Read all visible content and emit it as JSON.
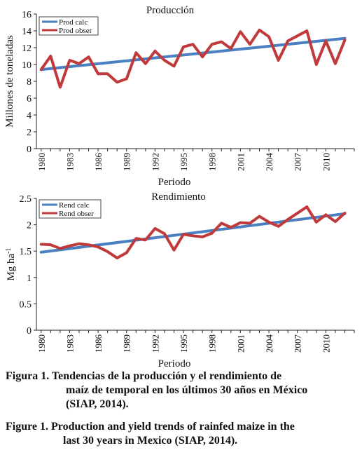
{
  "colors": {
    "calc": "#4a7fc1",
    "obser": "#c0393b"
  },
  "chart_data": [
    {
      "type": "line",
      "title": "Producción",
      "xlabel": "Periodo",
      "ylabel": "Millones de toneladas",
      "ylim": [
        0,
        16
      ],
      "yticks": [
        "0",
        "2",
        "4",
        "6",
        "8",
        "10",
        "12",
        "14",
        "16"
      ],
      "xticks": [
        "1980",
        "1983",
        "1986",
        "1989",
        "1992",
        "1995",
        "1998",
        "2001",
        "2004",
        "2007",
        "2010"
      ],
      "x": [
        1980,
        1981,
        1982,
        1983,
        1984,
        1985,
        1986,
        1987,
        1988,
        1989,
        1990,
        1991,
        1992,
        1993,
        1994,
        1995,
        1996,
        1997,
        1998,
        1999,
        2000,
        2001,
        2002,
        2003,
        2004,
        2005,
        2006,
        2007,
        2008,
        2009,
        2010,
        2011,
        2012
      ],
      "grid": false,
      "legend": "top-left",
      "series": [
        {
          "name": "Prod calc",
          "x": [
            1980,
            2012
          ],
          "values": [
            9.4,
            13.1
          ]
        },
        {
          "name": "Prod obser",
          "values": [
            9.4,
            11.0,
            7.3,
            10.5,
            10.1,
            10.9,
            8.9,
            8.9,
            7.9,
            8.3,
            11.4,
            10.1,
            11.6,
            10.5,
            9.8,
            12.1,
            12.4,
            10.9,
            12.4,
            12.7,
            11.9,
            13.9,
            12.4,
            14.1,
            13.3,
            10.5,
            12.8,
            13.4,
            14.0,
            10.0,
            12.8,
            10.1,
            12.9
          ]
        }
      ]
    },
    {
      "type": "line",
      "title": "Rendimiento",
      "xlabel": "Periodo",
      "ylabel": "Mg ha",
      "ylabel_sup": "-1",
      "ylim": [
        0,
        2.5
      ],
      "yticks": [
        "0",
        "0.5",
        "1",
        "1.5",
        "2",
        "2.5"
      ],
      "xticks": [
        "1980",
        "1983",
        "1986",
        "1989",
        "1992",
        "1995",
        "1998",
        "2001",
        "2004",
        "2007",
        "2010"
      ],
      "x": [
        1980,
        1981,
        1982,
        1983,
        1984,
        1985,
        1986,
        1987,
        1988,
        1989,
        1990,
        1991,
        1992,
        1993,
        1994,
        1995,
        1996,
        1997,
        1998,
        1999,
        2000,
        2001,
        2002,
        2003,
        2004,
        2005,
        2006,
        2007,
        2008,
        2009,
        2010,
        2011,
        2012
      ],
      "grid": false,
      "legend": "top-left",
      "series": [
        {
          "name": "Rend calc",
          "x": [
            1980,
            2012
          ],
          "values": [
            1.48,
            2.21
          ]
        },
        {
          "name": "Rend obser",
          "values": [
            1.63,
            1.62,
            1.55,
            1.6,
            1.64,
            1.62,
            1.58,
            1.49,
            1.37,
            1.47,
            1.74,
            1.71,
            1.93,
            1.83,
            1.52,
            1.82,
            1.79,
            1.77,
            1.84,
            2.03,
            1.95,
            2.04,
            2.03,
            2.16,
            2.05,
            1.97,
            2.1,
            2.22,
            2.34,
            2.05,
            2.19,
            2.06,
            2.22
          ]
        }
      ]
    }
  ],
  "caption": {
    "es_line1": "Figura 1. Tendencias de la producción y el rendimiento de",
    "es_line2": "maíz de temporal en los últimos 30 años en México",
    "es_line3": "(SIAP, 2014).",
    "en_line1": "Figure 1. Production and yield trends of rainfed maize in the",
    "en_line2": "last 30 years in Mexico (SIAP, 2014)."
  }
}
